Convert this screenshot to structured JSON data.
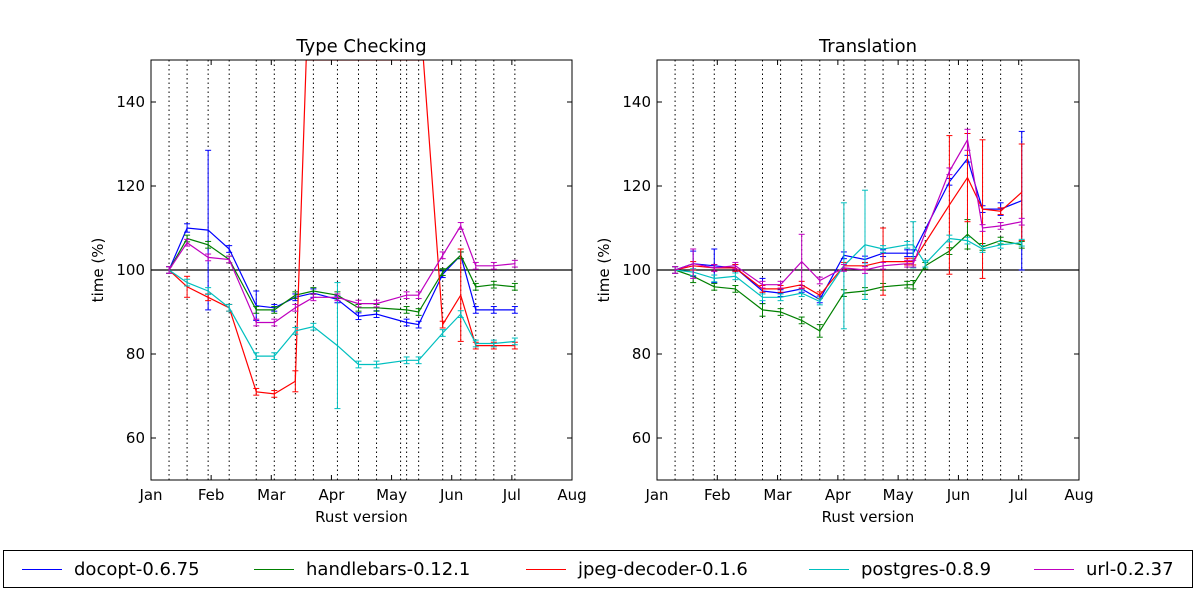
{
  "chart_data": [
    {
      "type": "line",
      "title": "Type Checking",
      "xlabel": "Rust version",
      "ylabel": "time (%)",
      "x_ticks": [
        "Jan",
        "Feb",
        "Mar",
        "Apr",
        "May",
        "Jun",
        "Jul",
        "Aug"
      ],
      "y_ticks": [
        "60",
        "80",
        "100",
        "120",
        "140"
      ],
      "xlim": [
        0,
        7
      ],
      "ylim": [
        50,
        150
      ],
      "reference_line": 100,
      "version_markers": [
        0.3,
        0.6,
        0.95,
        1.3,
        1.75,
        2.05,
        2.4,
        2.7,
        3.1,
        3.45,
        3.75,
        4.15,
        4.25,
        4.45,
        4.85,
        5.15,
        5.4,
        5.7,
        6.05
      ],
      "series": [
        {
          "name": "docopt-0.6.75",
          "color": "#0000ff",
          "x": [
            0.3,
            0.6,
            0.95,
            1.3,
            1.75,
            2.05,
            2.4,
            2.7,
            3.1,
            3.45,
            3.75,
            4.25,
            4.45,
            4.85,
            5.15,
            5.4,
            5.7,
            6.05
          ],
          "y": [
            100,
            110,
            109.5,
            105,
            91.5,
            91,
            93.5,
            94.5,
            93,
            89,
            89.5,
            87.5,
            87,
            99,
            103.5,
            90.5,
            90.5,
            90.5
          ],
          "err": [
            0.8,
            1,
            19,
            0.8,
            3.5,
            0.8,
            0.8,
            1,
            0.8,
            0.8,
            0.8,
            0.8,
            0.8,
            0.8,
            0.8,
            0.8,
            0.8,
            0.8
          ]
        },
        {
          "name": "handlebars-0.12.1",
          "color": "#008000",
          "x": [
            0.3,
            0.6,
            0.95,
            1.3,
            1.75,
            2.05,
            2.4,
            2.7,
            3.1,
            3.45,
            3.75,
            4.25,
            4.45,
            4.85,
            5.15,
            5.4,
            5.7,
            6.05
          ],
          "y": [
            100,
            107.5,
            106,
            102.5,
            90.5,
            90.5,
            94,
            95,
            94,
            91,
            91,
            90.5,
            90,
            99.5,
            103.5,
            96,
            96.5,
            96
          ],
          "err": [
            0.8,
            0.8,
            0.8,
            0.8,
            0.8,
            0.8,
            0.8,
            0.8,
            0.8,
            0.8,
            0.8,
            0.8,
            0.8,
            0.8,
            0.8,
            0.8,
            0.8,
            0.8
          ]
        },
        {
          "name": "jpeg-decoder-0.1.6",
          "color": "#ff0000",
          "x": [
            0.3,
            0.6,
            0.95,
            1.3,
            1.75,
            2.05,
            2.4,
            2.58,
            4.53,
            4.85,
            5.15,
            5.4,
            5.7,
            6.05
          ],
          "y": [
            100,
            96,
            93.5,
            91,
            71,
            70.5,
            73.5,
            150,
            150,
            87,
            94,
            82,
            82,
            82
          ],
          "err": [
            0.8,
            2.5,
            0.8,
            0.8,
            0.8,
            0.8,
            2.5,
            0,
            0,
            0.8,
            11,
            0.8,
            0.8,
            0.8
          ]
        },
        {
          "name": "postgres-0.8.9",
          "color": "#00bfbf",
          "x": [
            0.3,
            0.6,
            0.95,
            1.3,
            1.75,
            2.05,
            2.4,
            2.7,
            3.1,
            3.45,
            3.75,
            4.25,
            4.45,
            4.85,
            5.15,
            5.4,
            5.7,
            6.05
          ],
          "y": [
            100,
            97,
            95,
            91,
            79.5,
            79.5,
            85.5,
            86.5,
            82,
            77.5,
            77.5,
            78.5,
            78.5,
            85,
            89.5,
            82.5,
            82.5,
            83
          ],
          "err": [
            0.8,
            0.8,
            0.8,
            0.8,
            0.8,
            0.8,
            0.8,
            0.8,
            15,
            0.8,
            0.8,
            0.8,
            0.8,
            0.8,
            0.8,
            0.8,
            0.8,
            0.8
          ]
        },
        {
          "name": "url-0.2.37",
          "color": "#bf00bf",
          "x": [
            0.3,
            0.6,
            0.95,
            1.3,
            1.75,
            2.05,
            2.4,
            2.7,
            3.1,
            3.45,
            3.75,
            4.25,
            4.45,
            4.85,
            5.15,
            5.4,
            5.7,
            6.05
          ],
          "y": [
            100,
            106.5,
            103,
            102.5,
            87.5,
            87.5,
            91,
            93.5,
            93.5,
            92,
            92,
            94,
            94,
            103.5,
            110.5,
            101,
            101,
            101.5
          ],
          "err": [
            0.8,
            0.8,
            0.8,
            0.8,
            0.8,
            0.8,
            0.8,
            0.8,
            0.8,
            0.8,
            0.8,
            0.8,
            0.8,
            0.8,
            0.8,
            0.8,
            0.8,
            0.8
          ]
        }
      ]
    },
    {
      "type": "line",
      "title": "Translation",
      "xlabel": "Rust version",
      "ylabel": "time (%)",
      "x_ticks": [
        "Jan",
        "Feb",
        "Mar",
        "Apr",
        "May",
        "Jun",
        "Jul",
        "Aug"
      ],
      "y_ticks": [
        "60",
        "80",
        "100",
        "120",
        "140"
      ],
      "xlim": [
        0,
        7
      ],
      "ylim": [
        50,
        150
      ],
      "reference_line": 100,
      "version_markers": [
        0.3,
        0.6,
        0.95,
        1.3,
        1.75,
        2.05,
        2.4,
        2.7,
        3.1,
        3.45,
        3.75,
        4.15,
        4.25,
        4.45,
        4.85,
        5.15,
        5.4,
        5.7,
        6.05
      ],
      "series": [
        {
          "name": "docopt-0.6.75",
          "color": "#0000ff",
          "x": [
            0.3,
            0.6,
            0.95,
            1.3,
            1.75,
            2.05,
            2.4,
            2.7,
            3.1,
            3.45,
            3.75,
            4.15,
            4.25,
            4.85,
            5.15,
            5.4,
            5.7,
            6.05
          ],
          "y": [
            100,
            101.5,
            101,
            100.5,
            95,
            94.5,
            95.5,
            93,
            103.5,
            102.5,
            104,
            104,
            104,
            121,
            126.5,
            114.5,
            114.5,
            116.5
          ],
          "err": [
            0.8,
            3,
            4,
            0.8,
            3,
            0.8,
            0.8,
            0.8,
            0.8,
            0.8,
            0.8,
            0.8,
            0.8,
            0.8,
            0.8,
            0.8,
            1.5,
            16.5
          ]
        },
        {
          "name": "handlebars-0.12.1",
          "color": "#008000",
          "x": [
            0.3,
            0.6,
            0.95,
            1.3,
            1.75,
            2.05,
            2.4,
            2.7,
            3.1,
            3.45,
            3.75,
            4.15,
            4.25,
            4.45,
            4.85,
            5.15,
            5.4,
            5.7,
            6.05
          ],
          "y": [
            100,
            98.5,
            96,
            95.5,
            90.5,
            90,
            88,
            85.5,
            94.5,
            95,
            96,
            96.5,
            96.5,
            101,
            104.5,
            108.5,
            105.5,
            107,
            106
          ],
          "err": [
            0.8,
            1.5,
            0.8,
            0.8,
            1.5,
            0.8,
            0.8,
            1.5,
            0.8,
            0.8,
            0.8,
            0.8,
            1,
            0.8,
            0.8,
            3.5,
            0.8,
            0.8,
            0.8
          ]
        },
        {
          "name": "jpeg-decoder-0.1.6",
          "color": "#ff0000",
          "x": [
            0.3,
            0.6,
            0.95,
            1.3,
            1.75,
            2.05,
            2.4,
            2.7,
            3.1,
            3.45,
            3.75,
            4.15,
            4.25,
            4.85,
            5.15,
            5.4,
            5.7,
            6.05
          ],
          "y": [
            100,
            101,
            100.5,
            100.5,
            95.5,
            95.5,
            96.5,
            94,
            101,
            101,
            102,
            102,
            102,
            115.5,
            122,
            114.5,
            114,
            118.5
          ],
          "err": [
            0.8,
            1,
            0.8,
            0.8,
            0.8,
            0.8,
            0.8,
            0.8,
            0.8,
            0.8,
            8,
            0.8,
            0.8,
            16.5,
            10.5,
            16.5,
            0.8,
            11.5
          ]
        },
        {
          "name": "postgres-0.8.9",
          "color": "#00bfbf",
          "x": [
            0.3,
            0.6,
            0.95,
            1.3,
            1.75,
            2.05,
            2.4,
            2.7,
            3.1,
            3.45,
            3.75,
            4.15,
            4.25,
            4.45,
            4.85,
            5.15,
            5.4,
            5.7,
            6.05
          ],
          "y": [
            100,
            99.5,
            98,
            98.5,
            93.5,
            93.5,
            94.5,
            92.5,
            101,
            106,
            105,
            106,
            106,
            101.5,
            107.5,
            107,
            105,
            106,
            106.5
          ],
          "err": [
            0.8,
            0.8,
            0.8,
            0.8,
            0.8,
            0.8,
            0.8,
            0.8,
            15,
            13,
            0.8,
            0.8,
            5.5,
            0.8,
            0.8,
            0.8,
            0.8,
            0.8,
            0.8
          ]
        },
        {
          "name": "url-0.2.37",
          "color": "#bf00bf",
          "x": [
            0.3,
            0.6,
            0.95,
            1.3,
            1.75,
            2.05,
            2.4,
            2.7,
            3.1,
            3.45,
            3.75,
            4.15,
            4.25,
            4.85,
            5.15,
            5.4,
            5.7,
            6.05
          ],
          "y": [
            100,
            101.5,
            100.5,
            101,
            96.5,
            96.5,
            102,
            97.5,
            100.5,
            100,
            101,
            101.5,
            101.5,
            123.5,
            131,
            110,
            110.5,
            111.5
          ],
          "err": [
            0.8,
            3.5,
            0.8,
            0.8,
            0.8,
            0.8,
            6.5,
            0.8,
            0.8,
            0.8,
            0.8,
            0.8,
            0.8,
            0.8,
            2.5,
            0.8,
            0.8,
            0.8
          ]
        }
      ]
    }
  ],
  "legend": {
    "placement": "bottom",
    "items": [
      {
        "label": "docopt-0.6.75",
        "color": "#0000ff"
      },
      {
        "label": "handlebars-0.12.1",
        "color": "#008000"
      },
      {
        "label": "jpeg-decoder-0.1.6",
        "color": "#ff0000"
      },
      {
        "label": "postgres-0.8.9",
        "color": "#00bfbf"
      },
      {
        "label": "url-0.2.37",
        "color": "#bf00bf"
      }
    ]
  }
}
